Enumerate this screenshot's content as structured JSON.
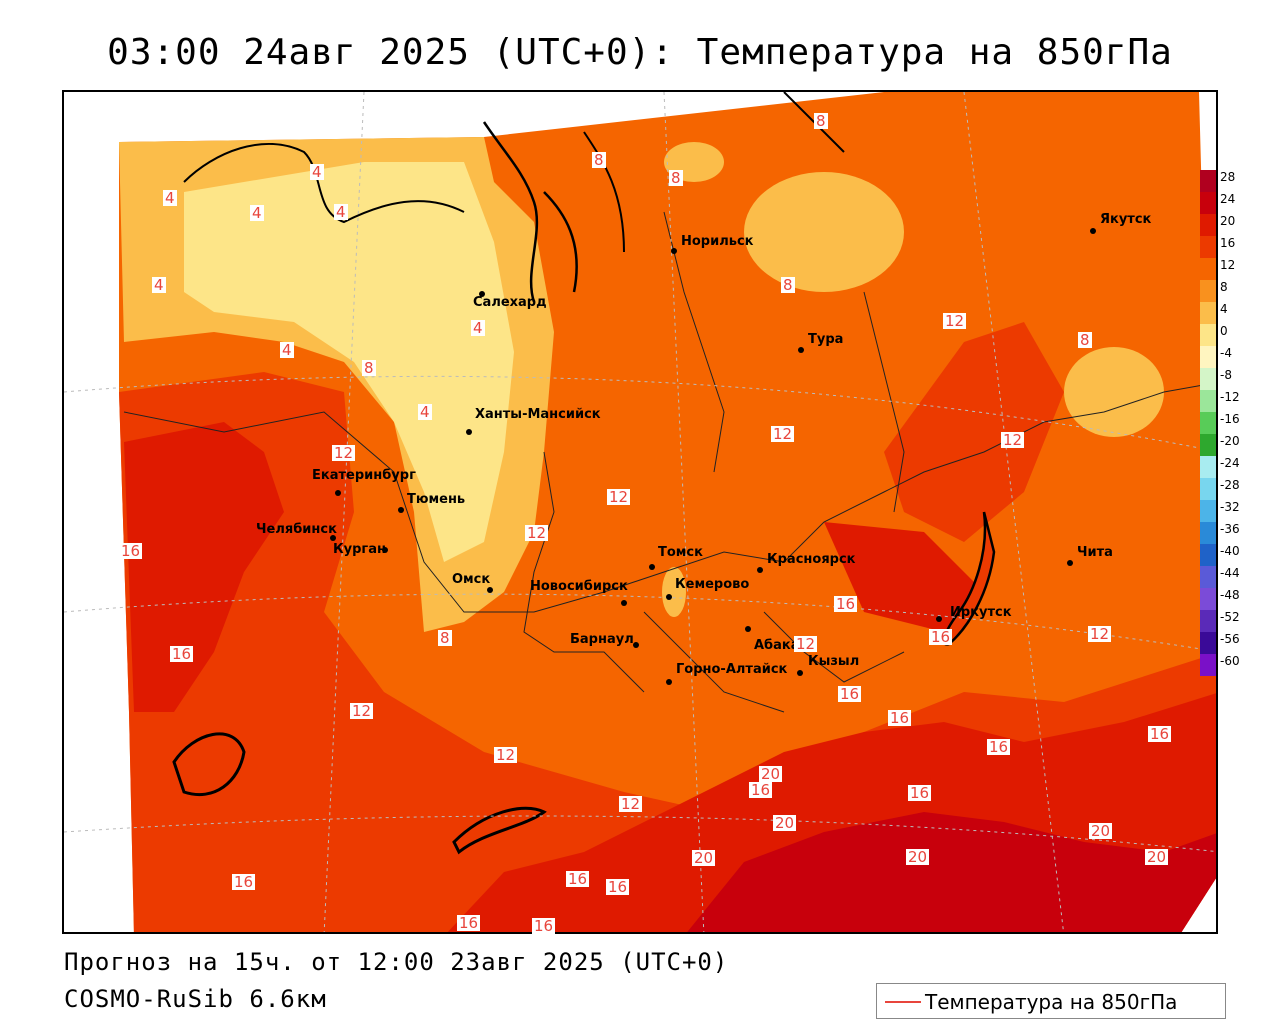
{
  "title": "03:00 24авг 2025 (UTC+0): Температура на 850гПа",
  "footer": {
    "forecast": "Прогноз на 15ч. от 12:00 23авг 2025 (UTC+0)",
    "model": "COSMO-RuSib 6.6км"
  },
  "legend": {
    "label": "Температура на 850гПа",
    "color": "#e8453c"
  },
  "colorbar": {
    "levels": [
      "28",
      "24",
      "20",
      "16",
      "12",
      "8",
      "4",
      "0",
      "-4",
      "-8",
      "-12",
      "-16",
      "-20",
      "-24",
      "-28",
      "-32",
      "-36",
      "-40",
      "-44",
      "-48",
      "-52",
      "-56",
      "-60"
    ],
    "colors": [
      "#b0001f",
      "#c8000c",
      "#df1a00",
      "#ec3a00",
      "#f56500",
      "#f9911e",
      "#fbbd4a",
      "#fde588",
      "#fff5c0",
      "#d4f5c8",
      "#9be69a",
      "#58cc58",
      "#2ea82e",
      "#a8ecf0",
      "#78d6ee",
      "#4cb4e8",
      "#2a8ad8",
      "#1f62c8",
      "#5a5ad8",
      "#7b4bd8",
      "#5a2ab8",
      "#3a0a98",
      "#7a10c8"
    ]
  },
  "cities": [
    {
      "name": "Салехард"
    },
    {
      "name": "Норильск"
    },
    {
      "name": "Якутск"
    },
    {
      "name": "Тура"
    },
    {
      "name": "Ханты-Мансийск"
    },
    {
      "name": "Екатеринбург"
    },
    {
      "name": "Тюмень"
    },
    {
      "name": "Челябинск"
    },
    {
      "name": "Курган"
    },
    {
      "name": "Омск"
    },
    {
      "name": "Томск"
    },
    {
      "name": "Красноярск"
    },
    {
      "name": "Новосибирск"
    },
    {
      "name": "Кемерово"
    },
    {
      "name": "Абакан"
    },
    {
      "name": "Барнаул"
    },
    {
      "name": "Иркутск"
    },
    {
      "name": "Чита"
    },
    {
      "name": "Кызыл"
    },
    {
      "name": "Горно-Алтайск"
    }
  ],
  "isotherm_labels": [
    "8",
    "8",
    "4",
    "4",
    "4",
    "4",
    "4",
    "8",
    "4",
    "4",
    "4",
    "8",
    "8",
    "12",
    "8",
    "12",
    "12",
    "12",
    "12",
    "16",
    "12",
    "8",
    "16",
    "12",
    "16",
    "12",
    "16",
    "12",
    "12",
    "16",
    "16",
    "16",
    "20",
    "16",
    "16",
    "20",
    "20",
    "12",
    "20",
    "20",
    "16",
    "16",
    "16",
    "16",
    "16",
    "16",
    "20"
  ]
}
